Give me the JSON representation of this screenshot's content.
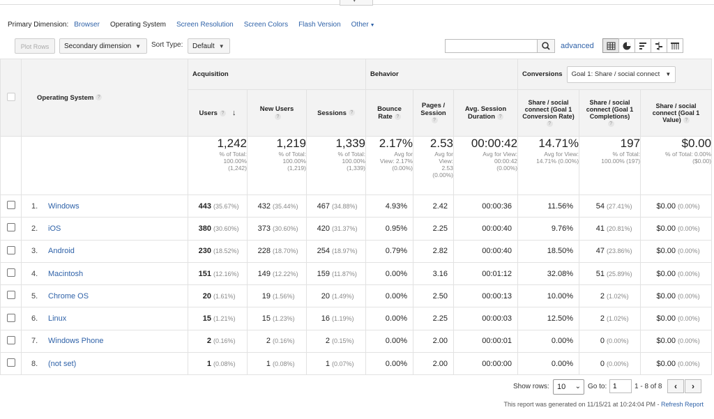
{
  "primary_dimension": {
    "label": "Primary Dimension:",
    "options": [
      {
        "label": "Browser",
        "selected": false
      },
      {
        "label": "Operating System",
        "selected": true
      },
      {
        "label": "Screen Resolution",
        "selected": false
      },
      {
        "label": "Screen Colors",
        "selected": false
      },
      {
        "label": "Flash Version",
        "selected": false
      },
      {
        "label": "Other",
        "selected": false
      }
    ]
  },
  "toolbar": {
    "plot_rows": "Plot Rows",
    "secondary_dimension": "Secondary dimension",
    "sort_type_label": "Sort Type:",
    "sort_type_value": "Default",
    "search_placeholder": "",
    "advanced": "advanced"
  },
  "table": {
    "dimension_header": "Operating System",
    "groups": {
      "acquisition": "Acquisition",
      "behavior": "Behavior",
      "conversions": "Conversions",
      "goal_select": "Goal 1: Share / social connect"
    },
    "columns": {
      "users": "Users",
      "new_users": "New Users",
      "sessions": "Sessions",
      "bounce_rate": "Bounce Rate",
      "pages_session": "Pages / Session",
      "avg_session": "Avg. Session Duration",
      "conv_rate": "Share / social connect (Goal 1 Conversion Rate)",
      "completions": "Share / social connect (Goal 1 Completions)",
      "value": "Share / social connect (Goal 1 Value)"
    },
    "totals": {
      "users": {
        "big": "1,242",
        "l1": "% of Total:",
        "l2": "100.00%",
        "l3": "(1,242)"
      },
      "new_users": {
        "big": "1,219",
        "l1": "% of Total:",
        "l2": "100.00%",
        "l3": "(1,219)"
      },
      "sessions": {
        "big": "1,339",
        "l1": "% of Total:",
        "l2": "100.00%",
        "l3": "(1,339)"
      },
      "bounce": {
        "big": "2.17%",
        "l1": "Avg for",
        "l2": "View: 2.17%",
        "l3": "(0.00%)"
      },
      "pages": {
        "big": "2.53",
        "l1": "Avg for",
        "l2": "View:",
        "l3": "2.53",
        "l4": "(0.00%)"
      },
      "duration": {
        "big": "00:00:42",
        "l1": "Avg for View:",
        "l2": "00:00:42",
        "l3": "(0.00%)"
      },
      "conv_rate": {
        "big": "14.71%",
        "l1": "Avg for View:",
        "l2": "14.71% (0.00%)"
      },
      "completions": {
        "big": "197",
        "l1": "% of Total:",
        "l2": "100.00% (197)"
      },
      "value": {
        "big": "$0.00",
        "l1": "% of Total: 0.00%",
        "l2": "($0.00)"
      }
    },
    "rows": [
      {
        "idx": "1.",
        "name": "Windows",
        "users": "443",
        "users_pct": "(35.67%)",
        "new_users": "432",
        "new_users_pct": "(35.44%)",
        "sessions": "467",
        "sessions_pct": "(34.88%)",
        "bounce": "4.93%",
        "pages": "2.42",
        "duration": "00:00:36",
        "conv_rate": "11.56%",
        "completions": "54",
        "completions_pct": "(27.41%)",
        "value": "$0.00",
        "value_pct": "(0.00%)"
      },
      {
        "idx": "2.",
        "name": "iOS",
        "users": "380",
        "users_pct": "(30.60%)",
        "new_users": "373",
        "new_users_pct": "(30.60%)",
        "sessions": "420",
        "sessions_pct": "(31.37%)",
        "bounce": "0.95%",
        "pages": "2.25",
        "duration": "00:00:40",
        "conv_rate": "9.76%",
        "completions": "41",
        "completions_pct": "(20.81%)",
        "value": "$0.00",
        "value_pct": "(0.00%)"
      },
      {
        "idx": "3.",
        "name": "Android",
        "users": "230",
        "users_pct": "(18.52%)",
        "new_users": "228",
        "new_users_pct": "(18.70%)",
        "sessions": "254",
        "sessions_pct": "(18.97%)",
        "bounce": "0.79%",
        "pages": "2.82",
        "duration": "00:00:40",
        "conv_rate": "18.50%",
        "completions": "47",
        "completions_pct": "(23.86%)",
        "value": "$0.00",
        "value_pct": "(0.00%)"
      },
      {
        "idx": "4.",
        "name": "Macintosh",
        "users": "151",
        "users_pct": "(12.16%)",
        "new_users": "149",
        "new_users_pct": "(12.22%)",
        "sessions": "159",
        "sessions_pct": "(11.87%)",
        "bounce": "0.00%",
        "pages": "3.16",
        "duration": "00:01:12",
        "conv_rate": "32.08%",
        "completions": "51",
        "completions_pct": "(25.89%)",
        "value": "$0.00",
        "value_pct": "(0.00%)"
      },
      {
        "idx": "5.",
        "name": "Chrome OS",
        "users": "20",
        "users_pct": "(1.61%)",
        "new_users": "19",
        "new_users_pct": "(1.56%)",
        "sessions": "20",
        "sessions_pct": "(1.49%)",
        "bounce": "0.00%",
        "pages": "2.50",
        "duration": "00:00:13",
        "conv_rate": "10.00%",
        "completions": "2",
        "completions_pct": "(1.02%)",
        "value": "$0.00",
        "value_pct": "(0.00%)"
      },
      {
        "idx": "6.",
        "name": "Linux",
        "users": "15",
        "users_pct": "(1.21%)",
        "new_users": "15",
        "new_users_pct": "(1.23%)",
        "sessions": "16",
        "sessions_pct": "(1.19%)",
        "bounce": "0.00%",
        "pages": "2.25",
        "duration": "00:00:03",
        "conv_rate": "12.50%",
        "completions": "2",
        "completions_pct": "(1.02%)",
        "value": "$0.00",
        "value_pct": "(0.00%)"
      },
      {
        "idx": "7.",
        "name": "Windows Phone",
        "users": "2",
        "users_pct": "(0.16%)",
        "new_users": "2",
        "new_users_pct": "(0.16%)",
        "sessions": "2",
        "sessions_pct": "(0.15%)",
        "bounce": "0.00%",
        "pages": "2.00",
        "duration": "00:00:01",
        "conv_rate": "0.00%",
        "completions": "0",
        "completions_pct": "(0.00%)",
        "value": "$0.00",
        "value_pct": "(0.00%)"
      },
      {
        "idx": "8.",
        "name": "(not set)",
        "users": "1",
        "users_pct": "(0.08%)",
        "new_users": "1",
        "new_users_pct": "(0.08%)",
        "sessions": "1",
        "sessions_pct": "(0.07%)",
        "bounce": "0.00%",
        "pages": "2.00",
        "duration": "00:00:00",
        "conv_rate": "0.00%",
        "completions": "0",
        "completions_pct": "(0.00%)",
        "value": "$0.00",
        "value_pct": "(0.00%)"
      }
    ]
  },
  "footer": {
    "show_rows_label": "Show rows:",
    "show_rows_value": "10",
    "goto_label": "Go to:",
    "goto_value": "1",
    "range": "1 - 8 of 8",
    "generated_text": "This report was generated on 11/15/21 at 10:24:04 PM - ",
    "refresh_link": "Refresh Report"
  },
  "colors": {
    "link": "#2f62a8",
    "header_bg": "#f3f3f3",
    "border": "#e2e2e2"
  }
}
